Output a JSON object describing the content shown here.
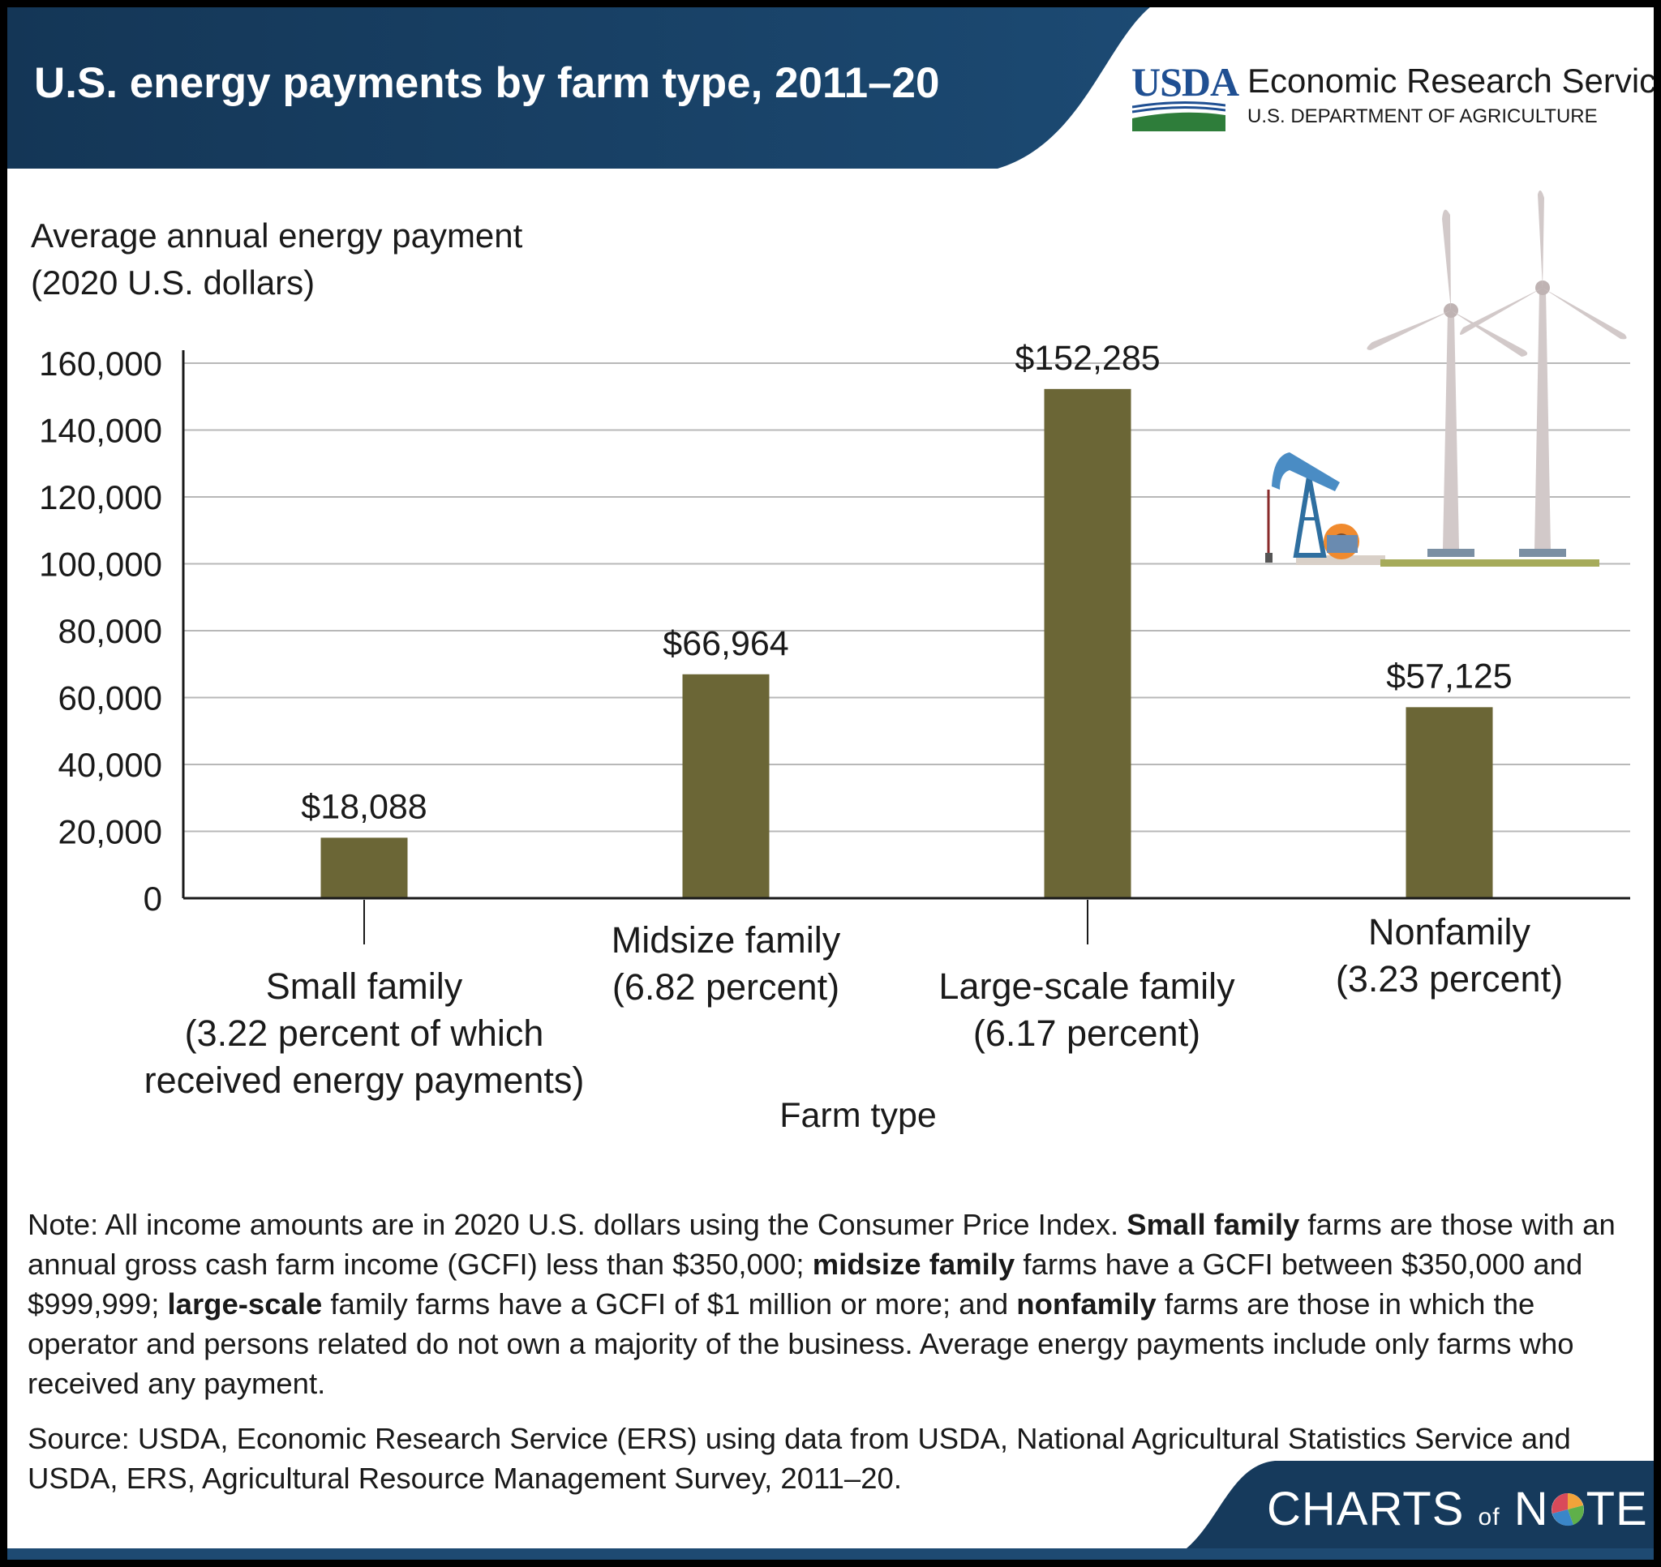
{
  "header": {
    "title": "U.S. energy payments by farm type, 2011–20",
    "logo_text": "USDA",
    "agency_name": "Economic Research Service",
    "department": "U.S. DEPARTMENT OF AGRICULTURE"
  },
  "colors": {
    "header_bg": "#163a5c",
    "bar": "#6b6636",
    "usda_blue": "#1f4f92",
    "usda_green": "#2e7d3a",
    "turbine": "#d2c9c9",
    "footer_stripe": "#1e4a72"
  },
  "icons": [
    "usda-logo-icon",
    "oil-pumpjack-icon",
    "wind-turbine-icon",
    "pie-chart-icon"
  ],
  "chart_data": {
    "type": "bar",
    "ylabel_line1": "Average annual energy payment",
    "ylabel_line2": "(2020 U.S. dollars)",
    "xlabel": "Farm type",
    "ylim": [
      0,
      160000
    ],
    "yticks": [
      "160,000",
      "140,000",
      "120,000",
      "100,000",
      "80,000",
      "60,000",
      "40,000",
      "20,000",
      "0"
    ],
    "grid": true,
    "categories": [
      {
        "line1": "Small family",
        "line2": "(3.22 percent of which",
        "line3": "received energy payments)"
      },
      {
        "line1": "Midsize family",
        "line2": "(6.82 percent)",
        "line3": ""
      },
      {
        "line1": "Large-scale family",
        "line2": "(6.17 percent)",
        "line3": ""
      },
      {
        "line1": "Nonfamily",
        "line2": "(3.23 percent)",
        "line3": ""
      }
    ],
    "values": [
      18088,
      66964,
      152285,
      57125
    ],
    "data_labels": [
      "$18,088",
      "$66,964",
      "$152,285",
      "$57,125"
    ]
  },
  "note": {
    "p1": "Note: All income amounts are in 2020 U.S. dollars using the Consumer Price Index. ",
    "b1": "Small family",
    "p2": " farms are those with an annual gross cash farm income (GCFI) less than $350,000; ",
    "b2": "midsize family",
    "p3": " farms have a GCFI between $350,000 and $999,999; ",
    "b3": "large-scale",
    "p4": " family farms have a GCFI of $1 million or more; and ",
    "b4": "nonfamily",
    "p5": " farms are those in which the operator and persons related do not own a majority of the business. Average energy payments include only farms who received any payment."
  },
  "source": "Source: USDA, Economic Research Service (ERS) using data from USDA, National Agricultural Statistics Service and USDA, ERS, Agricultural Resource Management Survey, 2011–20.",
  "branding": {
    "charts": "CHARTS",
    "of": "of",
    "n": "N",
    "te": "TE"
  }
}
